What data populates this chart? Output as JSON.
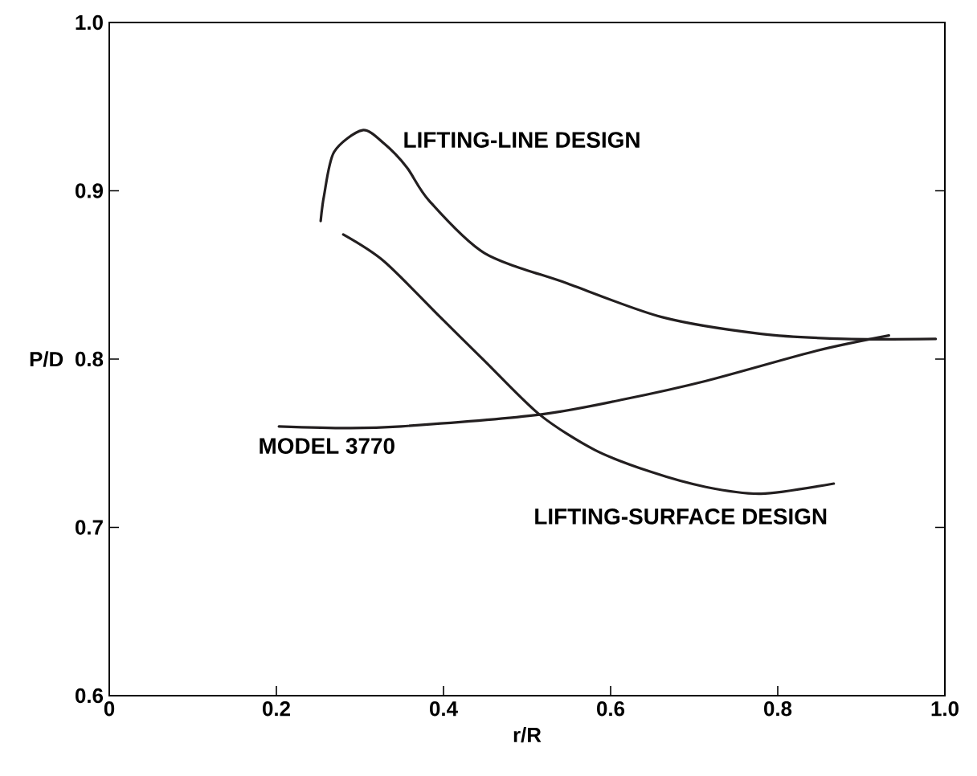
{
  "chart_data": {
    "type": "line",
    "xlabel": "r/R",
    "ylabel": "P/D",
    "xlim": [
      0,
      1
    ],
    "ylim": [
      0.6,
      1
    ],
    "xticks": [
      0,
      0.2,
      0.4,
      0.6,
      0.8,
      {
        "value": 1,
        "label": "1.0"
      }
    ],
    "yticks": [
      0.6,
      0.7,
      0.8,
      0.9,
      {
        "value": 1,
        "label": "1.0"
      }
    ],
    "grid": false,
    "legend": false,
    "marker": "none",
    "line_style": "solid",
    "series": [
      {
        "name": "LIFTING-LINE DESIGN",
        "color": "#231f20",
        "x": [
          0.253,
          0.257,
          0.269,
          0.303,
          0.329,
          0.356,
          0.383,
          0.449,
          0.548,
          0.661,
          0.78,
          0.88,
          0.989
        ],
        "values": [
          0.882,
          0.897,
          0.923,
          0.936,
          0.928,
          0.914,
          0.894,
          0.863,
          0.845,
          0.825,
          0.815,
          0.812,
          0.812
        ]
      },
      {
        "name": "LIFTING-SURFACE DESIGN",
        "color": "#231f20",
        "x": [
          0.28,
          0.329,
          0.396,
          0.449,
          0.515,
          0.581,
          0.648,
          0.714,
          0.78,
          0.867
        ],
        "values": [
          0.874,
          0.858,
          0.825,
          0.799,
          0.767,
          0.746,
          0.733,
          0.724,
          0.72,
          0.726
        ]
      },
      {
        "name": "MODEL 3770",
        "color": "#231f20",
        "x": [
          0.203,
          0.283,
          0.349,
          0.515,
          0.615,
          0.714,
          0.847,
          0.933
        ],
        "values": [
          0.76,
          0.759,
          0.76,
          0.767,
          0.776,
          0.787,
          0.805,
          0.814
        ]
      }
    ]
  }
}
